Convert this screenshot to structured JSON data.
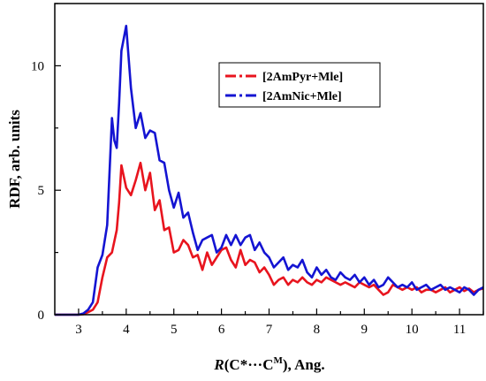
{
  "chart_data": {
    "type": "line",
    "xlim": [
      2.5,
      11.5
    ],
    "ylim": [
      0,
      12.5
    ],
    "x_ticks": [
      "3",
      "4",
      "5",
      "6",
      "7",
      "8",
      "9",
      "10",
      "11"
    ],
    "y_ticks": [
      "0",
      "5",
      "10"
    ],
    "xlabel": {
      "pre": "R",
      "mid": "(C*···C",
      "sup": "M",
      "post": "), Ang."
    },
    "ylabel": "RDF, arb. units",
    "legend_position": "top-right",
    "series": [
      {
        "name": "[2AmPyr+Mle]",
        "color": "#e8141e",
        "dash": "dash-dot",
        "x": [
          2.5,
          3.0,
          3.1,
          3.2,
          3.3,
          3.4,
          3.5,
          3.6,
          3.7,
          3.8,
          3.85,
          3.9,
          4.0,
          4.1,
          4.2,
          4.3,
          4.4,
          4.5,
          4.6,
          4.7,
          4.8,
          4.9,
          5.0,
          5.1,
          5.2,
          5.3,
          5.4,
          5.5,
          5.6,
          5.7,
          5.8,
          5.9,
          6.0,
          6.1,
          6.2,
          6.3,
          6.4,
          6.5,
          6.6,
          6.7,
          6.8,
          6.9,
          7.0,
          7.1,
          7.2,
          7.3,
          7.4,
          7.5,
          7.6,
          7.7,
          7.8,
          7.9,
          8.0,
          8.1,
          8.2,
          8.3,
          8.4,
          8.5,
          8.6,
          8.7,
          8.8,
          8.9,
          9.0,
          9.1,
          9.2,
          9.3,
          9.4,
          9.5,
          9.6,
          9.7,
          9.8,
          9.9,
          10.0,
          10.1,
          10.2,
          10.3,
          10.4,
          10.5,
          10.6,
          10.7,
          10.8,
          10.9,
          11.0,
          11.1,
          11.2,
          11.3,
          11.4,
          11.5
        ],
        "y": [
          0,
          0,
          0.02,
          0.1,
          0.2,
          0.5,
          1.5,
          2.3,
          2.5,
          3.4,
          4.5,
          6.0,
          5.1,
          4.8,
          5.4,
          6.1,
          5.0,
          5.7,
          4.2,
          4.6,
          3.4,
          3.5,
          2.5,
          2.6,
          3.0,
          2.8,
          2.3,
          2.4,
          1.8,
          2.5,
          2.0,
          2.3,
          2.6,
          2.7,
          2.2,
          1.9,
          2.6,
          2.0,
          2.2,
          2.1,
          1.7,
          1.9,
          1.6,
          1.2,
          1.4,
          1.5,
          1.2,
          1.4,
          1.3,
          1.5,
          1.3,
          1.2,
          1.4,
          1.3,
          1.5,
          1.4,
          1.3,
          1.2,
          1.3,
          1.2,
          1.1,
          1.3,
          1.2,
          1.1,
          1.2,
          1.0,
          0.8,
          0.9,
          1.2,
          1.1,
          1.0,
          1.1,
          1.0,
          1.1,
          0.9,
          1.0,
          1.0,
          0.9,
          1.0,
          1.1,
          0.9,
          1.0,
          1.1,
          0.95,
          1.05,
          0.9,
          1.0,
          1.05
        ]
      },
      {
        "name": "[2AmNic+Mle]",
        "color": "#1414d2",
        "dash": "dash-dot",
        "x": [
          2.5,
          3.0,
          3.1,
          3.2,
          3.3,
          3.4,
          3.5,
          3.6,
          3.7,
          3.75,
          3.8,
          3.85,
          3.9,
          4.0,
          4.1,
          4.2,
          4.3,
          4.4,
          4.5,
          4.6,
          4.7,
          4.8,
          4.9,
          5.0,
          5.1,
          5.2,
          5.3,
          5.4,
          5.5,
          5.6,
          5.7,
          5.8,
          5.9,
          6.0,
          6.1,
          6.2,
          6.3,
          6.4,
          6.5,
          6.6,
          6.7,
          6.8,
          6.9,
          7.0,
          7.1,
          7.2,
          7.3,
          7.4,
          7.5,
          7.6,
          7.7,
          7.8,
          7.9,
          8.0,
          8.1,
          8.2,
          8.3,
          8.4,
          8.5,
          8.6,
          8.7,
          8.8,
          8.9,
          9.0,
          9.1,
          9.2,
          9.3,
          9.4,
          9.5,
          9.6,
          9.7,
          9.8,
          9.9,
          10.0,
          10.1,
          10.2,
          10.3,
          10.4,
          10.5,
          10.6,
          10.7,
          10.8,
          10.9,
          11.0,
          11.1,
          11.2,
          11.3,
          11.4,
          11.5
        ],
        "y": [
          0,
          0,
          0.05,
          0.2,
          0.5,
          1.9,
          2.4,
          3.6,
          7.9,
          7.0,
          6.7,
          8.5,
          10.6,
          11.6,
          9.1,
          7.5,
          8.1,
          7.1,
          7.4,
          7.3,
          6.2,
          6.1,
          5.0,
          4.3,
          4.9,
          3.9,
          4.1,
          3.3,
          2.6,
          3.0,
          3.1,
          3.2,
          2.5,
          2.7,
          3.2,
          2.8,
          3.2,
          2.8,
          3.1,
          3.2,
          2.6,
          2.9,
          2.5,
          2.3,
          1.9,
          2.1,
          2.3,
          1.8,
          2.0,
          1.9,
          2.2,
          1.7,
          1.5,
          1.9,
          1.6,
          1.8,
          1.5,
          1.4,
          1.7,
          1.5,
          1.4,
          1.6,
          1.3,
          1.5,
          1.2,
          1.4,
          1.1,
          1.2,
          1.5,
          1.3,
          1.1,
          1.2,
          1.1,
          1.3,
          1.0,
          1.1,
          1.2,
          1.0,
          1.1,
          1.2,
          1.0,
          1.1,
          1.0,
          0.9,
          1.1,
          1.0,
          0.8,
          1.0,
          1.1
        ]
      }
    ]
  }
}
